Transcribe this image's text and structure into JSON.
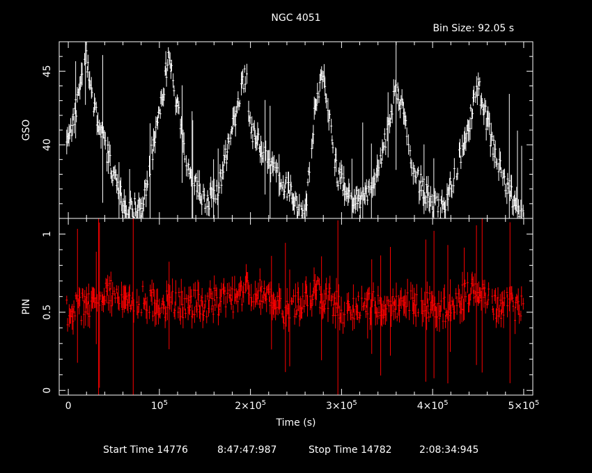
{
  "header": {
    "title": "NGC 4051",
    "bin_size": "Bin Size: 92.05 s"
  },
  "footer": {
    "start_label": "Start Time 14776",
    "start_time": "8:47:47:987",
    "stop_label": "Stop Time 14782",
    "stop_time": "2:08:34:945"
  },
  "chart_data": [
    {
      "type": "scatter",
      "panel": "top",
      "ylabel": "GSO",
      "ylim": [
        35,
        47
      ],
      "ytick_labels": [
        "40",
        "45"
      ],
      "ytick_values": [
        40,
        45
      ],
      "series_color": "#ffffff",
      "x_unit": "s",
      "keypoints": [
        [
          0,
          40
        ],
        [
          20000,
          46
        ],
        [
          30000,
          42
        ],
        [
          60000,
          36
        ],
        [
          80000,
          35.5
        ],
        [
          100000,
          42
        ],
        [
          110000,
          46
        ],
        [
          130000,
          39
        ],
        [
          150000,
          36
        ],
        [
          165000,
          37
        ],
        [
          195000,
          45
        ],
        [
          200000,
          41
        ],
        [
          240000,
          37
        ],
        [
          250000,
          36
        ],
        [
          260000,
          35
        ],
        [
          270000,
          42
        ],
        [
          280000,
          45
        ],
        [
          295000,
          38
        ],
        [
          320000,
          36
        ],
        [
          340000,
          38
        ],
        [
          360000,
          44
        ],
        [
          365000,
          43
        ],
        [
          380000,
          38
        ],
        [
          400000,
          36
        ],
        [
          410000,
          35.5
        ],
        [
          435000,
          40
        ],
        [
          450000,
          44
        ],
        [
          470000,
          39
        ],
        [
          490000,
          36
        ],
        [
          500000,
          35
        ]
      ]
    },
    {
      "type": "scatter",
      "panel": "bottom",
      "ylabel": "PIN",
      "ylim": [
        -0.03,
        1.1
      ],
      "ytick_labels": [
        "0",
        "0.5",
        "1"
      ],
      "ytick_values": [
        0,
        0.5,
        1
      ],
      "series_color": "#ff0000",
      "x_unit": "s",
      "keypoints": [
        [
          0,
          0.5
        ],
        [
          50000,
          0.62
        ],
        [
          100000,
          0.55
        ],
        [
          150000,
          0.56
        ],
        [
          180000,
          0.57
        ],
        [
          195000,
          0.66
        ],
        [
          230000,
          0.6
        ],
        [
          240000,
          0.48
        ],
        [
          270000,
          0.64
        ],
        [
          300000,
          0.52
        ],
        [
          340000,
          0.55
        ],
        [
          380000,
          0.56
        ],
        [
          420000,
          0.52
        ],
        [
          440000,
          0.64
        ],
        [
          470000,
          0.55
        ],
        [
          500000,
          0.53
        ]
      ]
    }
  ],
  "x_axis": {
    "label": "Time (s)",
    "xlim": [
      -10000,
      510000
    ],
    "tick_values": [
      0,
      100000,
      200000,
      300000,
      400000,
      500000
    ],
    "tick_labels": [
      {
        "mant": "0",
        "exp": ""
      },
      {
        "mant": "10",
        "exp": "5"
      },
      {
        "mant": "2×10",
        "exp": "5"
      },
      {
        "mant": "3×10",
        "exp": "5"
      },
      {
        "mant": "4×10",
        "exp": "5"
      },
      {
        "mant": "5×10",
        "exp": "5"
      }
    ]
  }
}
